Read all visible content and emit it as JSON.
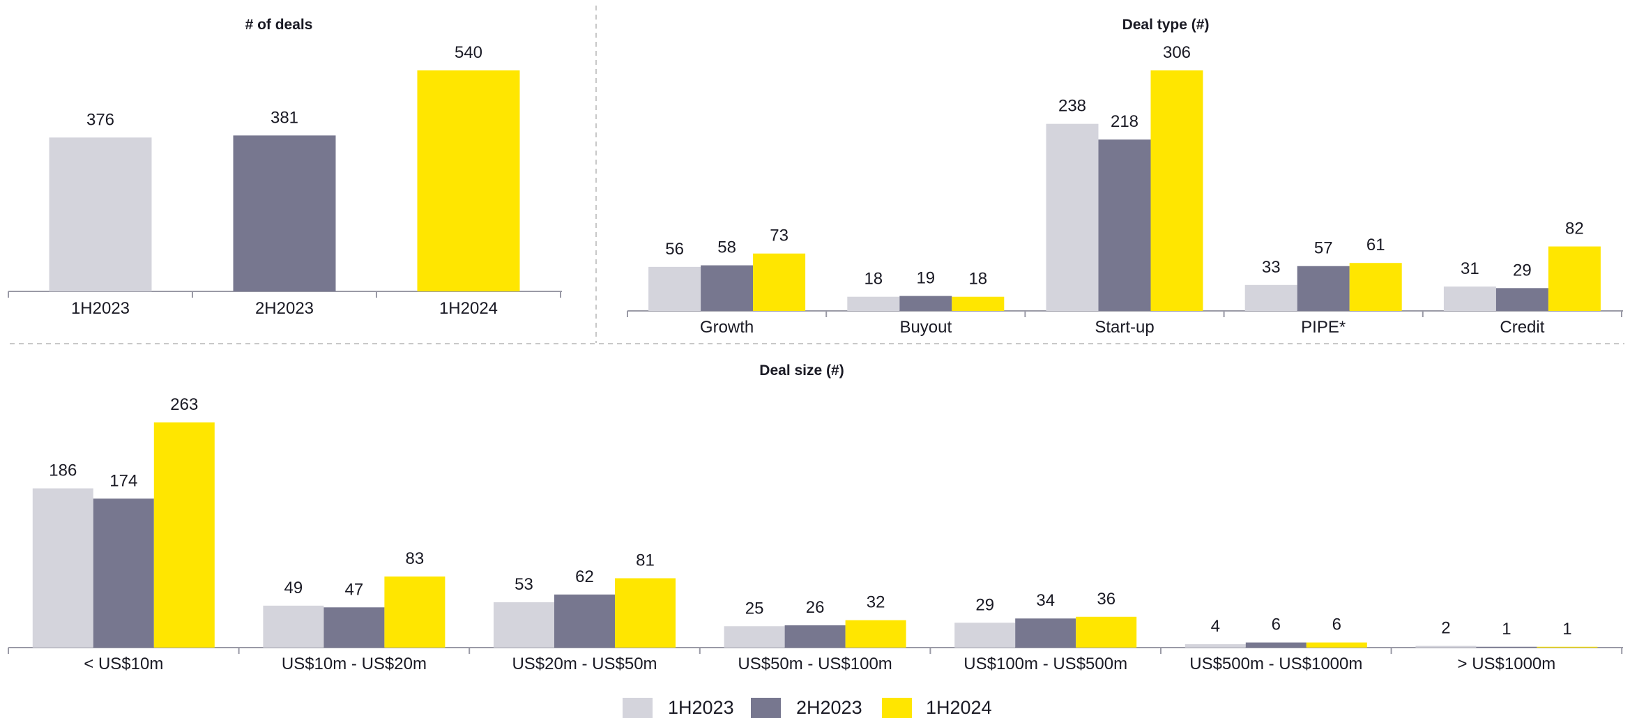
{
  "colors": {
    "1H2023": "#d4d4dc",
    "2H2023": "#77778f",
    "1H2024": "#ffe600",
    "axis": "#9a9aa6",
    "divider": "#c8c8c8"
  },
  "legend": [
    {
      "name": "1H2023",
      "color": "#d4d4dc"
    },
    {
      "name": "2H2023",
      "color": "#77778f"
    },
    {
      "name": "1H2024",
      "color": "#ffe600"
    }
  ],
  "chart_data": [
    {
      "type": "bar",
      "title": "# of deals",
      "categories": [
        "1H2023",
        "2H2023",
        "1H2024"
      ],
      "values": [
        376,
        381,
        540
      ],
      "colors": [
        "#d4d4dc",
        "#77778f",
        "#ffe600"
      ],
      "ylim": [
        0,
        540
      ]
    },
    {
      "type": "bar",
      "title": "Deal type (#)",
      "categories": [
        "Growth",
        "Buyout",
        "Start-up",
        "PIPE*",
        "Credit"
      ],
      "series": [
        {
          "name": "1H2023",
          "values": [
            56,
            18,
            238,
            33,
            31
          ]
        },
        {
          "name": "2H2023",
          "values": [
            58,
            19,
            218,
            57,
            29
          ]
        },
        {
          "name": "1H2024",
          "values": [
            73,
            18,
            306,
            61,
            82
          ]
        }
      ],
      "ylim": [
        0,
        306
      ]
    },
    {
      "type": "bar",
      "title": "Deal size (#)",
      "categories": [
        "< US$10m",
        "US$10m - US$20m",
        "US$20m - US$50m",
        "US$50m - US$100m",
        "US$100m - US$500m",
        "US$500m - US$1000m",
        "> US$1000m"
      ],
      "series": [
        {
          "name": "1H2023",
          "values": [
            186,
            49,
            53,
            25,
            29,
            4,
            2
          ]
        },
        {
          "name": "2H2023",
          "values": [
            174,
            47,
            62,
            26,
            34,
            6,
            1
          ]
        },
        {
          "name": "1H2024",
          "values": [
            263,
            83,
            81,
            32,
            36,
            6,
            1
          ]
        }
      ],
      "ylim": [
        0,
        263
      ]
    }
  ]
}
